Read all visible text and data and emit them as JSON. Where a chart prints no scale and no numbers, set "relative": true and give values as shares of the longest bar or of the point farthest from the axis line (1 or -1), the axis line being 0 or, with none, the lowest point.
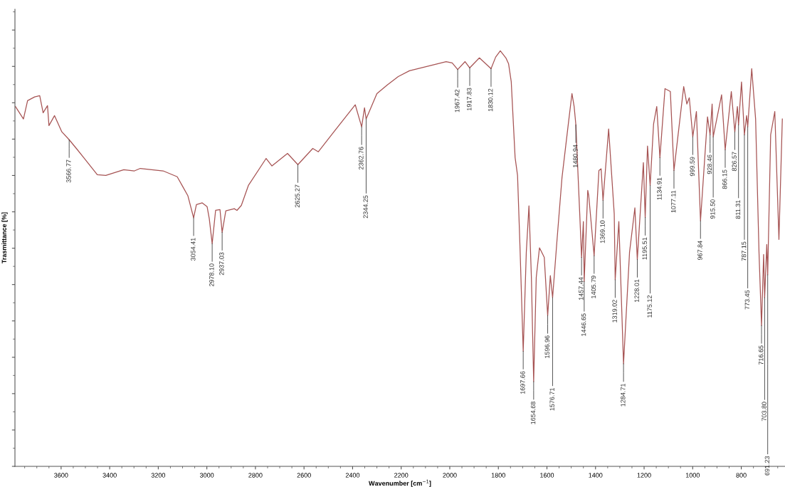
{
  "chart_data": {
    "type": "line",
    "relative": true,
    "xlabel": "Wavenumber [cm$^{−1}$]",
    "ylabel": "Trasmittance [%]",
    "xlim": [
      3790,
      620
    ],
    "xticks": [
      3600,
      3400,
      3200,
      3000,
      2800,
      2600,
      2400,
      2200,
      2000,
      1800,
      1600,
      1400,
      1200,
      1000,
      800
    ],
    "tick_labels": "x",
    "grid": false,
    "marker": "none",
    "line_style": "solid",
    "x": [
      3788,
      3755,
      3738,
      3709,
      3688,
      3674,
      3656,
      3650,
      3627,
      3597,
      3566.77,
      3533,
      3504,
      3451,
      3416,
      3342,
      3298,
      3274,
      3180,
      3122,
      3078,
      3054.41,
      3043,
      3019,
      2999,
      2990,
      2978.1,
      2964,
      2946,
      2937.03,
      2922,
      2887,
      2876,
      2858,
      2829,
      2756,
      2732,
      2668,
      2630,
      2625.27,
      2564,
      2541,
      2477,
      2389,
      2362.76,
      2351,
      2344.25,
      2300,
      2257,
      2212,
      2166,
      2083,
      2015,
      1990,
      1967.42,
      1937,
      1917.83,
      1878,
      1852,
      1830.12,
      1811,
      1792,
      1769,
      1758,
      1747,
      1731,
      1721,
      1711,
      1697.66,
      1685,
      1674,
      1664,
      1654.68,
      1644,
      1630.7,
      1611,
      1596.96,
      1586,
      1576.71,
      1559,
      1538,
      1512,
      1497,
      1488,
      1480.94,
      1465,
      1457.44,
      1450,
      1446.65,
      1432,
      1428,
      1405.79,
      1386,
      1377,
      1369.1,
      1346,
      1323,
      1319.02,
      1304,
      1284.71,
      1260,
      1238,
      1228.01,
      1203,
      1195.51,
      1186,
      1175.12,
      1161,
      1148,
      1134.91,
      1114,
      1092,
      1077.11,
      1061,
      1037,
      1024,
      1014,
      999.59,
      984.7,
      967.84,
      939,
      928.46,
      920,
      915.5,
      881,
      866.15,
      841,
      826.57,
      816,
      811.31,
      799,
      787.15,
      778,
      773.45,
      757,
      741,
      727,
      716.65,
      708,
      703.8,
      695,
      691.23,
      679,
      662,
      645,
      631
    ],
    "series": [
      {
        "color": "#a65353",
        "values": [
          0.866,
          0.836,
          0.88,
          0.889,
          0.892,
          0.851,
          0.868,
          0.82,
          0.844,
          0.805,
          0.786,
          0.762,
          0.741,
          0.702,
          0.7,
          0.714,
          0.711,
          0.717,
          0.711,
          0.697,
          0.651,
          0.598,
          0.63,
          0.634,
          0.625,
          0.596,
          0.536,
          0.616,
          0.618,
          0.563,
          0.615,
          0.62,
          0.616,
          0.628,
          0.676,
          0.741,
          0.723,
          0.753,
          0.729,
          0.726,
          0.765,
          0.757,
          0.805,
          0.87,
          0.817,
          0.863,
          0.836,
          0.897,
          0.918,
          0.938,
          0.952,
          0.964,
          0.974,
          0.971,
          0.955,
          0.974,
          0.959,
          0.983,
          0.969,
          0.957,
          0.985,
          1,
          0.983,
          0.969,
          0.926,
          0.743,
          0.7,
          0.529,
          0.277,
          0.515,
          0.627,
          0.455,
          0.204,
          0.455,
          0.526,
          0.503,
          0.363,
          0.459,
          0.406,
          0.541,
          0.695,
          0.824,
          0.897,
          0.866,
          0.822,
          0.608,
          0.503,
          0.589,
          0.445,
          0.664,
          0.652,
          0.507,
          0.712,
          0.716,
          0.64,
          0.812,
          0.608,
          0.449,
          0.589,
          0.247,
          0.515,
          0.622,
          0.498,
          0.731,
          0.599,
          0.771,
          0.676,
          0.824,
          0.866,
          0.743,
          0.909,
          0.902,
          0.712,
          0.793,
          0.914,
          0.872,
          0.887,
          0.793,
          0.854,
          0.591,
          0.841,
          0.798,
          0.872,
          0.793,
          0.894,
          0.762,
          0.902,
          0.805,
          0.866,
          0.822,
          0.925,
          0.798,
          0.844,
          0.817,
          0.957,
          0.836,
          0.515,
          0.339,
          0.51,
          0.406,
          0.534,
          0.461,
          0.798,
          0.854,
          0.546,
          0.836
        ]
      }
    ],
    "annotations": [
      {
        "text": "3566.77",
        "x": 3566.77,
        "y": 0.786
      },
      {
        "text": "3054.41",
        "x": 3054.41,
        "y": 0.598
      },
      {
        "text": "2978.10",
        "x": 2978.1,
        "y": 0.536
      },
      {
        "text": "2937.03",
        "x": 2937.03,
        "y": 0.563
      },
      {
        "text": "2625.27",
        "x": 2625.27,
        "y": 0.726
      },
      {
        "text": "2362.76",
        "x": 2362.76,
        "y": 0.817
      },
      {
        "text": "2344.25",
        "x": 2344.25,
        "y": 0.836
      },
      {
        "text": "1967.42",
        "x": 1967.42,
        "y": 0.955
      },
      {
        "text": "1917.83",
        "x": 1917.83,
        "y": 0.959
      },
      {
        "text": "1830.12",
        "x": 1830.12,
        "y": 0.957
      },
      {
        "text": "1697.66",
        "x": 1697.66,
        "y": 0.277
      },
      {
        "text": "1654.68",
        "x": 1654.68,
        "y": 0.204
      },
      {
        "text": "1596.96",
        "x": 1596.96,
        "y": 0.363
      },
      {
        "text": "1576.71",
        "x": 1576.71,
        "y": 0.406
      },
      {
        "text": "1480.94",
        "x": 1480.94,
        "y": 0.822
      },
      {
        "text": "1457.44",
        "x": 1457.44,
        "y": 0.503
      },
      {
        "text": "1446.65",
        "x": 1446.65,
        "y": 0.445
      },
      {
        "text": "1405.79",
        "x": 1405.79,
        "y": 0.507
      },
      {
        "text": "1369.10",
        "x": 1369.1,
        "y": 0.64
      },
      {
        "text": "1319.02",
        "x": 1319.02,
        "y": 0.449
      },
      {
        "text": "1284.71",
        "x": 1284.71,
        "y": 0.247
      },
      {
        "text": "1228.01",
        "x": 1228.01,
        "y": 0.498
      },
      {
        "text": "1195.51",
        "x": 1195.51,
        "y": 0.599
      },
      {
        "text": "1175.12",
        "x": 1175.12,
        "y": 0.676
      },
      {
        "text": "1134.91",
        "x": 1134.91,
        "y": 0.743
      },
      {
        "text": "1077.11",
        "x": 1077.11,
        "y": 0.712
      },
      {
        "text": "999.59",
        "x": 999.59,
        "y": 0.793
      },
      {
        "text": "967.84",
        "x": 967.84,
        "y": 0.591
      },
      {
        "text": "928.46",
        "x": 928.46,
        "y": 0.798
      },
      {
        "text": "915.50",
        "x": 915.5,
        "y": 0.793
      },
      {
        "text": "866.15",
        "x": 866.15,
        "y": 0.762
      },
      {
        "text": "826.57",
        "x": 826.57,
        "y": 0.805
      },
      {
        "text": "811.31",
        "x": 811.31,
        "y": 0.822
      },
      {
        "text": "787.15",
        "x": 787.15,
        "y": 0.798
      },
      {
        "text": "773.45",
        "x": 773.45,
        "y": 0.817
      },
      {
        "text": "716.65",
        "x": 716.65,
        "y": 0.339
      },
      {
        "text": "703.80",
        "x": 703.8,
        "y": 0.406
      },
      {
        "text": "691.23",
        "x": 691.23,
        "y": 0.461
      }
    ]
  }
}
